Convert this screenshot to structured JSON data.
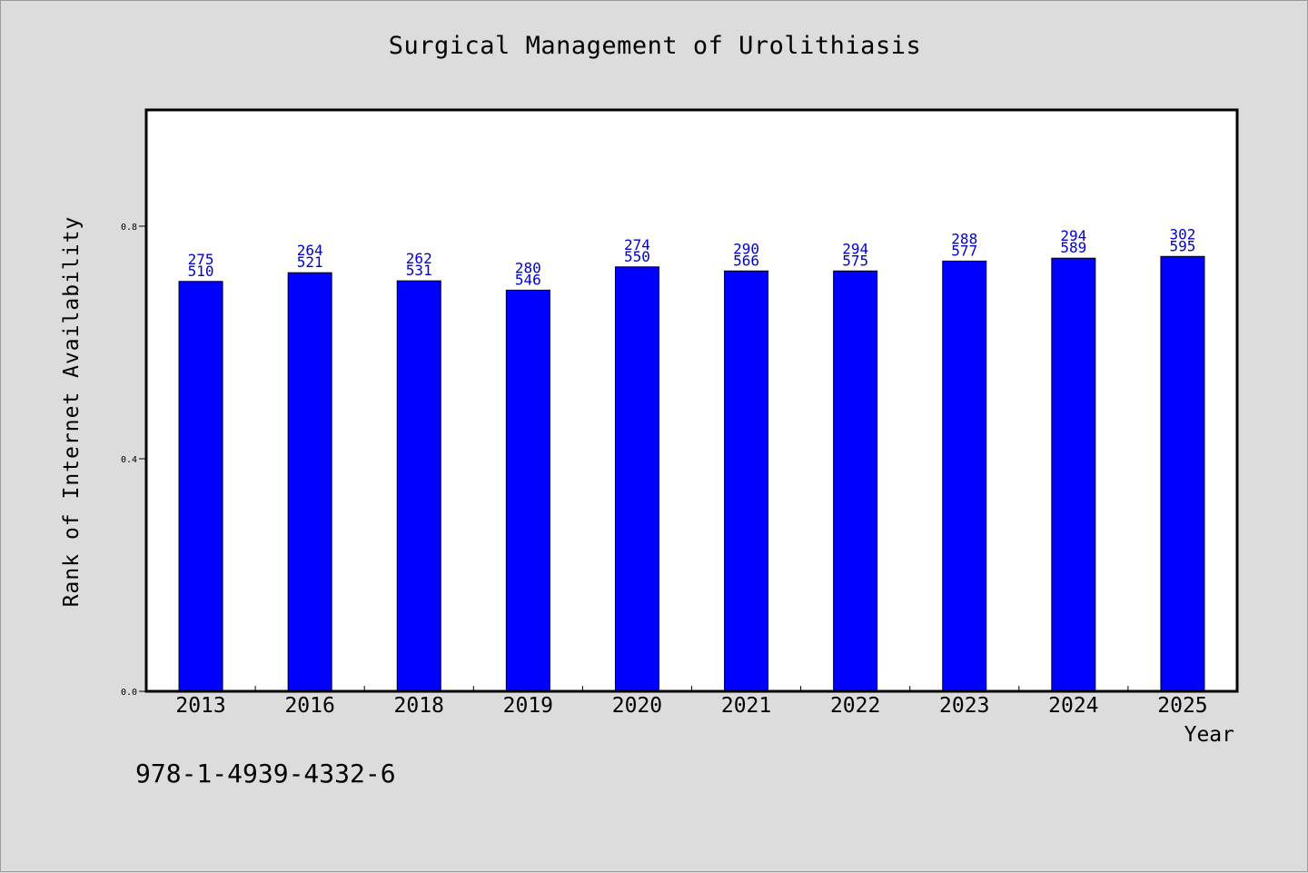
{
  "chart_data": {
    "type": "bar",
    "title": "Surgical Management of Urolithiasis",
    "xlabel": "Year",
    "ylabel": "Rank of Internet Availability",
    "categories": [
      "2013",
      "2016",
      "2018",
      "2019",
      "2020",
      "2021",
      "2022",
      "2023",
      "2024",
      "2025"
    ],
    "values": [
      0.705,
      0.72,
      0.706,
      0.69,
      0.73,
      0.723,
      0.723,
      0.74,
      0.745,
      0.748
    ],
    "label_top": [
      "275",
      "264",
      "262",
      "280",
      "274",
      "290",
      "294",
      "288",
      "294",
      "302"
    ],
    "label_bottom": [
      "510",
      "521",
      "531",
      "546",
      "550",
      "566",
      "575",
      "577",
      "589",
      "595"
    ],
    "ylim": [
      0,
      1.0
    ],
    "yticks": [
      "0.0",
      "0.4",
      "0.8"
    ],
    "ytick_values": [
      0,
      0.4,
      0.8
    ],
    "bar_color": "#0000ff",
    "label_color": "#0000cc",
    "grid": false,
    "legend": "none"
  },
  "footer": {
    "code": "978-1-4939-4332-6"
  }
}
